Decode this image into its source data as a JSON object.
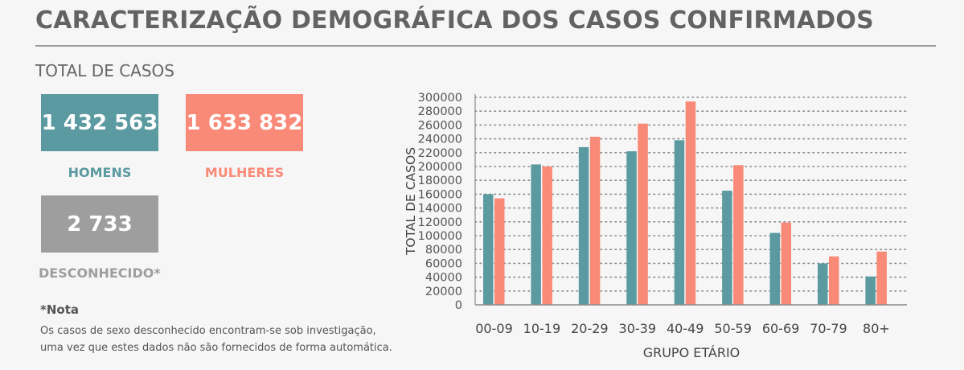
{
  "header": {
    "title": "CARACTERIZAÇÃO DEMOGRÁFICA DOS CASOS CONFIRMADOS"
  },
  "summary": {
    "section_label": "TOTAL DE CASOS",
    "homens": {
      "value": "1 432 563",
      "label": "HOMENS",
      "color": "#5b9aa0"
    },
    "mulheres": {
      "value": "1 633 832",
      "label": "MULHERES",
      "color": "#f98a78"
    },
    "desconhecido": {
      "value": "2 733",
      "label": "DESCONHECIDO*",
      "color": "#9e9e9e"
    }
  },
  "note": {
    "title": "*Nota",
    "lines": [
      "Os casos de sexo desconhecido encontram-se sob investigação,",
      "uma vez que estes dados não são fornecidos de forma automática."
    ]
  },
  "chart_data": {
    "type": "bar",
    "title": "",
    "xlabel": "GRUPO ETÁRIO",
    "ylabel": "TOTAL DE CASOS",
    "ylim": [
      0,
      300000
    ],
    "yticks": [
      0,
      20000,
      40000,
      60000,
      80000,
      100000,
      120000,
      140000,
      160000,
      180000,
      200000,
      220000,
      240000,
      260000,
      280000,
      300000
    ],
    "grid": true,
    "categories": [
      "00-09",
      "10-19",
      "20-29",
      "30-39",
      "40-49",
      "50-59",
      "60-69",
      "70-79",
      "80+"
    ],
    "series": [
      {
        "color": "#5b9aa0",
        "values": [
          160000,
          203000,
          228000,
          222000,
          238000,
          165000,
          104000,
          60000,
          41000
        ]
      },
      {
        "color": "#f98a78",
        "values": [
          154000,
          200000,
          243000,
          262000,
          294000,
          202000,
          119000,
          70000,
          77000
        ]
      }
    ]
  }
}
